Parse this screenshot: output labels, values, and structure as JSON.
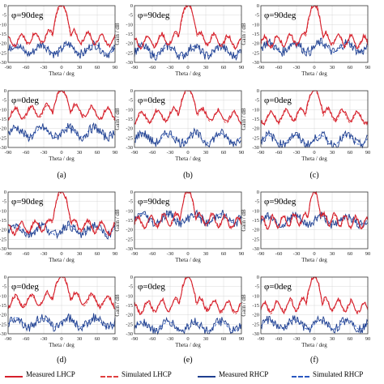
{
  "colors": {
    "measured_lhcp": "#d6202c",
    "simulated_lhcp": "#e04040",
    "measured_rhcp": "#1f3f8f",
    "simulated_rhcp": "#2a58c0",
    "axes": "#333333",
    "grid": "#d8d8d8"
  },
  "legend": {
    "measured_lhcp": "Measured LHCP",
    "simulated_lhcp": "Simulated LHCP",
    "measured_rhcp": "Measured RHCP",
    "simulated_rhcp": "Simulated RHCP"
  },
  "chart_data": [
    {
      "type": "line",
      "panel": "a",
      "phi_label": "φ=90deg",
      "xlabel": "Theta / deg",
      "ylabel": "",
      "xlim": [
        -90,
        90
      ],
      "ylim": [
        -30,
        0
      ],
      "x_ticks": [
        "-90",
        "-60",
        "-30",
        "0",
        "30",
        "60",
        "90"
      ],
      "y_ticks": [
        "0",
        "-5",
        "-10",
        "-15",
        "-20",
        "-25",
        "-30"
      ],
      "main_lobe_width": 13,
      "sidelobe_level": -16,
      "rhcp_level": -23,
      "caption": ""
    },
    {
      "type": "line",
      "panel": "b",
      "phi_label": "φ=90deg",
      "xlabel": "Theta / deg",
      "ylabel": "Gain / dB",
      "xlim": [
        -90,
        90
      ],
      "ylim": [
        -30,
        0
      ],
      "x_ticks": [
        "-90",
        "-60",
        "-30",
        "0",
        "30",
        "60",
        "90"
      ],
      "y_ticks": [
        "0",
        "-5",
        "-10",
        "-15",
        "-20",
        "-25",
        "-30"
      ],
      "main_lobe_width": 13,
      "sidelobe_level": -17,
      "rhcp_level": -24,
      "caption": ""
    },
    {
      "type": "line",
      "panel": "c",
      "phi_label": "φ=90deg",
      "xlabel": "Theta / deg",
      "ylabel": "Gain / dB",
      "xlim": [
        -90,
        90
      ],
      "ylim": [
        -30,
        0
      ],
      "x_ticks": [
        "-90",
        "-60",
        "-30",
        "0",
        "30",
        "60",
        "90"
      ],
      "y_ticks": [
        "0",
        "-5",
        "-10",
        "-15",
        "-20",
        "-25",
        "-30"
      ],
      "main_lobe_width": 12,
      "sidelobe_level": -17,
      "rhcp_level": -22,
      "caption": ""
    },
    {
      "type": "line",
      "panel": "a",
      "phi_label": "φ=0deg",
      "xlabel": "Theta / deg",
      "ylabel": "",
      "xlim": [
        -90,
        90
      ],
      "ylim": [
        -30,
        0
      ],
      "x_ticks": [
        "-90",
        "-60",
        "-30",
        "0",
        "30",
        "60",
        "90"
      ],
      "y_ticks": [
        "0",
        "-5",
        "-10",
        "-15",
        "-20",
        "-25",
        "-30"
      ],
      "main_lobe_width": 15,
      "sidelobe_level": -10,
      "rhcp_level": -22,
      "caption": "(a)"
    },
    {
      "type": "line",
      "panel": "b",
      "phi_label": "φ=0deg",
      "xlabel": "Theta / deg",
      "ylabel": "Gain / dB",
      "xlim": [
        -90,
        90
      ],
      "ylim": [
        -30,
        0
      ],
      "x_ticks": [
        "-90",
        "-60",
        "-30",
        "0",
        "30",
        "60",
        "90"
      ],
      "y_ticks": [
        "0",
        "-5",
        "-10",
        "-15",
        "-20",
        "-25",
        "-30"
      ],
      "main_lobe_width": 15,
      "sidelobe_level": -12,
      "rhcp_level": -25,
      "caption": "(b)"
    },
    {
      "type": "line",
      "panel": "c",
      "phi_label": "φ=0deg",
      "xlabel": "Theta / deg",
      "ylabel": "Gain / dB",
      "xlim": [
        -90,
        90
      ],
      "ylim": [
        -30,
        0
      ],
      "x_ticks": [
        "-90",
        "-60",
        "-30",
        "0",
        "30",
        "60",
        "90"
      ],
      "y_ticks": [
        "0",
        "-5",
        "-10",
        "-15",
        "-20",
        "-25",
        "-30"
      ],
      "main_lobe_width": 14,
      "sidelobe_level": -12,
      "rhcp_level": -26,
      "caption": "(c)"
    },
    {
      "type": "line",
      "panel": "d",
      "phi_label": "φ=90deg",
      "xlabel": "Theta / deg",
      "ylabel": "",
      "xlim": [
        -90,
        90
      ],
      "ylim": [
        -30,
        0
      ],
      "x_ticks": [
        "-90",
        "-60",
        "-30",
        "0",
        "30",
        "60",
        "90"
      ],
      "y_ticks": [
        "0",
        "-5",
        "-10",
        "-15",
        "-20",
        "-25",
        "-30"
      ],
      "main_lobe_width": 13,
      "sidelobe_level": -17,
      "rhcp_level": -20,
      "caption": ""
    },
    {
      "type": "line",
      "panel": "e",
      "phi_label": "φ=90deg",
      "xlabel": "Theta / deg",
      "ylabel": "Gain / dB",
      "xlim": [
        -90,
        90
      ],
      "ylim": [
        -30,
        0
      ],
      "x_ticks": [
        "-90",
        "-60",
        "-30",
        "0",
        "30",
        "60",
        "90"
      ],
      "y_ticks": [
        "0",
        "-5",
        "-10",
        "-15",
        "-20",
        "-25",
        "-30"
      ],
      "main_lobe_width": 12,
      "sidelobe_level": -14,
      "rhcp_level": -14,
      "caption": ""
    },
    {
      "type": "line",
      "panel": "f",
      "phi_label": "φ=90deg",
      "xlabel": "Theta / deg",
      "ylabel": "Gain / dB",
      "xlim": [
        -90,
        90
      ],
      "ylim": [
        -30,
        0
      ],
      "x_ticks": [
        "-90",
        "-60",
        "-30",
        "0",
        "30",
        "60",
        "90"
      ],
      "y_ticks": [
        "0",
        "-5",
        "-10",
        "-15",
        "-20",
        "-25",
        "-30"
      ],
      "main_lobe_width": 10,
      "sidelobe_level": -14,
      "rhcp_level": -15,
      "caption": ""
    },
    {
      "type": "line",
      "panel": "d",
      "phi_label": "φ=0deg",
      "xlabel": "Theta / deg",
      "ylabel": "",
      "xlim": [
        -90,
        90
      ],
      "ylim": [
        -30,
        0
      ],
      "x_ticks": [
        "-90",
        "-60",
        "-30",
        "0",
        "30",
        "60",
        "90"
      ],
      "y_ticks": [
        "0",
        "-5",
        "-10",
        "-15",
        "-20",
        "-25",
        "-30"
      ],
      "main_lobe_width": 15,
      "sidelobe_level": -11,
      "rhcp_level": -24,
      "caption": "(d)"
    },
    {
      "type": "line",
      "panel": "e",
      "phi_label": "φ=0deg",
      "xlabel": "Theta / deg",
      "ylabel": "Gain / dB",
      "xlim": [
        -90,
        90
      ],
      "ylim": [
        -30,
        0
      ],
      "x_ticks": [
        "-90",
        "-60",
        "-30",
        "0",
        "30",
        "60",
        "90"
      ],
      "y_ticks": [
        "0",
        "-5",
        "-10",
        "-15",
        "-20",
        "-25",
        "-30"
      ],
      "main_lobe_width": 13,
      "sidelobe_level": -14,
      "rhcp_level": -26,
      "caption": "(e)"
    },
    {
      "type": "line",
      "panel": "f",
      "phi_label": "φ=0deg",
      "xlabel": "Theta / deg",
      "ylabel": "Gain / dB",
      "xlim": [
        -90,
        90
      ],
      "ylim": [
        -30,
        0
      ],
      "x_ticks": [
        "-90",
        "-60",
        "-30",
        "0",
        "30",
        "60",
        "90"
      ],
      "y_ticks": [
        "0",
        "-5",
        "-10",
        "-15",
        "-20",
        "-25",
        "-30"
      ],
      "main_lobe_width": 12,
      "sidelobe_level": -14,
      "rhcp_level": -25,
      "caption": "(f)"
    }
  ]
}
